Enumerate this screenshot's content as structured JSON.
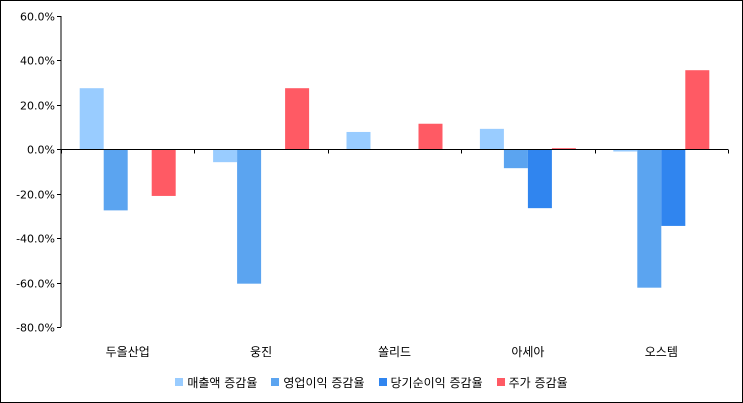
{
  "chart_data": {
    "type": "bar",
    "categories": [
      "두올산업",
      "웅진",
      "쏠리드",
      "아세아",
      "오스템"
    ],
    "series": [
      {
        "name": "매출액 증감율",
        "color": "#99ccff",
        "values": [
          27.5,
          -5.8,
          7.8,
          9.2,
          -1.0
        ]
      },
      {
        "name": "영업이익 증감율",
        "color": "#5ba4f0",
        "values": [
          -27.5,
          -60.5,
          null,
          -8.5,
          -62.3
        ]
      },
      {
        "name": "당기순이익 증감율",
        "color": "#3085ef",
        "values": [
          null,
          null,
          null,
          -26.5,
          -34.5
        ]
      },
      {
        "name": "주가 증감율",
        "color": "#ff5a64",
        "values": [
          -21.0,
          27.5,
          11.5,
          0.5,
          35.6
        ]
      }
    ],
    "ylim": [
      -80,
      60
    ],
    "ytick_step": 20,
    "ytick_labels": [
      "60.0%",
      "40.0%",
      "20.0%",
      "0.0%",
      "-20.0%",
      "-40.0%",
      "-60.0%",
      "-80.0%"
    ],
    "title": "",
    "xlabel": "",
    "ylabel": "",
    "grid": false,
    "legend_position": "bottom"
  }
}
